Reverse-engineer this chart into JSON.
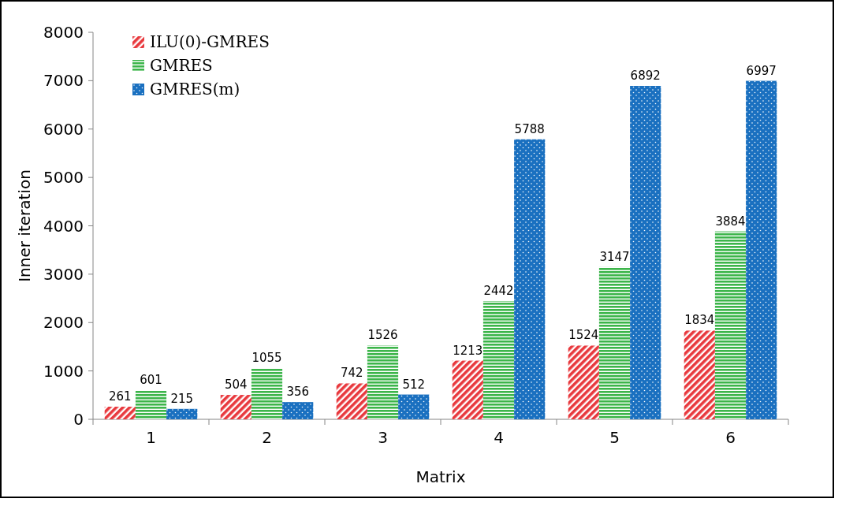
{
  "chart_data": {
    "type": "bar",
    "xlabel": "Matrix",
    "ylabel": "Inner iteration",
    "categories": [
      "1",
      "2",
      "3",
      "4",
      "5",
      "6"
    ],
    "series": [
      {
        "name": "ILU(0)-GMRES",
        "color": "#e8383d",
        "values": [
          261,
          504,
          742,
          1213,
          1524,
          1834
        ]
      },
      {
        "name": "GMRES",
        "color": "#3cb54a",
        "values": [
          601,
          1055,
          1526,
          2442,
          3147,
          3884
        ]
      },
      {
        "name": "GMRES(m)",
        "color": "#1a70c0",
        "values": [
          215,
          356,
          512,
          5788,
          6892,
          6997
        ]
      }
    ],
    "ylim": [
      0,
      8000
    ],
    "yticks": [
      0,
      1000,
      2000,
      3000,
      4000,
      5000,
      6000,
      7000,
      8000
    ],
    "data_labels": true,
    "legend": "top left",
    "grid": false
  }
}
